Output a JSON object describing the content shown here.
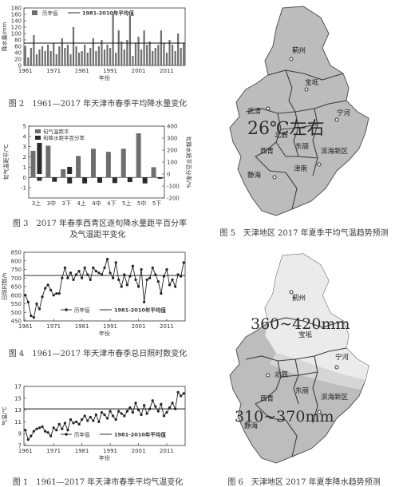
{
  "chart_data": [
    {
      "id": "fig2",
      "type": "bar",
      "caption": "图 2　1961—2017 年天津市春季平均降水量变化",
      "xlabel": "年份",
      "ylabel": "降水量/mm",
      "ylim": [
        0,
        180
      ],
      "yticks": [
        0,
        20,
        40,
        60,
        80,
        100,
        120,
        140,
        160,
        180
      ],
      "xticks": [
        1961,
        1971,
        1981,
        1991,
        2001,
        2011
      ],
      "x": [
        1961,
        1962,
        1963,
        1964,
        1965,
        1966,
        1967,
        1968,
        1969,
        1970,
        1971,
        1972,
        1973,
        1974,
        1975,
        1976,
        1977,
        1978,
        1979,
        1980,
        1981,
        1982,
        1983,
        1984,
        1985,
        1986,
        1987,
        1988,
        1989,
        1990,
        1991,
        1992,
        1993,
        1994,
        1995,
        1996,
        1997,
        1998,
        1999,
        2000,
        2001,
        2002,
        2003,
        2004,
        2005,
        2006,
        2007,
        2008,
        2009,
        2010,
        2011,
        2012,
        2013,
        2014,
        2015,
        2016,
        2017
      ],
      "values": [
        60,
        25,
        55,
        95,
        35,
        50,
        60,
        45,
        65,
        45,
        70,
        35,
        60,
        85,
        55,
        65,
        35,
        120,
        60,
        40,
        45,
        65,
        40,
        55,
        85,
        45,
        60,
        80,
        50,
        65,
        55,
        160,
        40,
        110,
        75,
        50,
        80,
        155,
        30,
        70,
        90,
        50,
        110,
        65,
        75,
        45,
        55,
        65,
        110,
        70,
        40,
        80,
        65,
        45,
        100,
        55,
        70
      ],
      "series": [
        {
          "name": "历年值"
        },
        {
          "name": "1981-2010年平均值",
          "value": 70
        }
      ]
    },
    {
      "id": "fig3",
      "type": "bar",
      "caption": "图 3　2017 年春季西青区逐旬降水量距平百分率",
      "caption2": "及气温距平变化",
      "ylabel_left": "旬气温距平/℃",
      "ylabel_right": "旬降水距平百分率/%",
      "ylim_left": [
        -2,
        5
      ],
      "yticks_left": [
        -1,
        0,
        1,
        2,
        3,
        4,
        5
      ],
      "ylim_right": [
        -200,
        400
      ],
      "yticks_right": [
        -200,
        -100,
        0,
        100,
        200,
        300,
        400
      ],
      "categories": [
        "3上",
        "3中",
        "3下",
        "4上",
        "4中",
        "4下",
        "5上",
        "5中",
        "5下"
      ],
      "series": [
        {
          "name": "旬气温距平",
          "axis": "left",
          "values": [
            2.6,
            3.1,
            0.8,
            2.1,
            2.8,
            2.5,
            2.8,
            4.3,
            1.0
          ]
        },
        {
          "name": "旬降水距平百分率",
          "axis": "right",
          "values": [
            260,
            0,
            60,
            0,
            0,
            0,
            0,
            0,
            0
          ],
          "values_neg": [
            -50,
            -65,
            -90,
            -90,
            -80,
            -85,
            -70,
            -90,
            -20
          ]
        }
      ]
    },
    {
      "id": "fig4",
      "type": "line",
      "caption": "图 4　1961—2017 年天津市春季总日照时数变化",
      "xlabel": "年份",
      "ylabel": "日照时数/h",
      "ylim": [
        450,
        850
      ],
      "yticks": [
        450,
        500,
        550,
        600,
        650,
        700,
        750,
        800,
        850
      ],
      "xticks": [
        1961,
        1971,
        1981,
        1991,
        2001,
        2011
      ],
      "x": [
        1961,
        1962,
        1963,
        1964,
        1965,
        1966,
        1967,
        1968,
        1969,
        1970,
        1971,
        1972,
        1973,
        1974,
        1975,
        1976,
        1977,
        1978,
        1979,
        1980,
        1981,
        1982,
        1983,
        1984,
        1985,
        1986,
        1987,
        1988,
        1989,
        1990,
        1991,
        1992,
        1993,
        1994,
        1995,
        1996,
        1997,
        1998,
        1999,
        2000,
        2001,
        2002,
        2003,
        2004,
        2005,
        2006,
        2007,
        2008,
        2009,
        2010,
        2011,
        2012,
        2013,
        2014,
        2015,
        2016,
        2017
      ],
      "y": [
        600,
        560,
        480,
        470,
        550,
        520,
        590,
        640,
        660,
        630,
        600,
        610,
        610,
        700,
        760,
        700,
        730,
        690,
        720,
        740,
        700,
        760,
        720,
        690,
        760,
        740,
        730,
        720,
        760,
        810,
        730,
        700,
        790,
        690,
        650,
        720,
        660,
        710,
        770,
        690,
        650,
        750,
        560,
        690,
        700,
        760,
        720,
        680,
        610,
        710,
        750,
        660,
        690,
        650,
        720,
        710,
        790
      ],
      "series": [
        {
          "name": "历年值"
        },
        {
          "name": "1981-2010年平均值",
          "value": 715
        }
      ]
    },
    {
      "id": "fig1",
      "type": "line",
      "caption": "图 1　1961—2017 年天津市春季平均气温变化",
      "xlabel": "年份",
      "ylabel": "气温/℃",
      "ylim": [
        7,
        17
      ],
      "yticks": [
        7,
        9,
        11,
        13,
        15,
        17
      ],
      "xticks": [
        1961,
        1971,
        1981,
        1991,
        2001,
        2011
      ],
      "x": [
        1961,
        1962,
        1963,
        1964,
        1965,
        1966,
        1967,
        1968,
        1969,
        1970,
        1971,
        1972,
        1973,
        1974,
        1975,
        1976,
        1977,
        1978,
        1979,
        1980,
        1981,
        1982,
        1983,
        1984,
        1985,
        1986,
        1987,
        1988,
        1989,
        1990,
        1991,
        1992,
        1993,
        1994,
        1995,
        1996,
        1997,
        1998,
        1999,
        2000,
        2001,
        2002,
        2003,
        2004,
        2005,
        2006,
        2007,
        2008,
        2009,
        2010,
        2011,
        2012,
        2013,
        2014,
        2015,
        2016,
        2017
      ],
      "y": [
        9.6,
        8.0,
        8.6,
        9.4,
        9.8,
        10.0,
        10.2,
        9.4,
        9.2,
        8.6,
        10.0,
        9.6,
        10.6,
        9.8,
        10.8,
        9.6,
        11.4,
        10.8,
        11.0,
        10.6,
        11.4,
        12.0,
        11.2,
        11.8,
        11.2,
        12.2,
        11.0,
        12.6,
        12.2,
        11.6,
        12.8,
        12.0,
        11.4,
        12.8,
        12.4,
        12.0,
        12.8,
        13.4,
        12.6,
        14.2,
        13.0,
        12.2,
        13.8,
        12.4,
        13.2,
        14.6,
        13.6,
        12.8,
        14.0,
        12.0,
        12.6,
        13.4,
        14.2,
        13.2,
        16.0,
        15.4,
        15.8
      ],
      "series": [
        {
          "name": "历年值"
        },
        {
          "name": "1981-2010年平均值",
          "value": 13.2
        }
      ]
    }
  ],
  "maps": [
    {
      "id": "fig5",
      "caption": "图 5　天津地区 2017 年夏季平均气温趋势预测",
      "overlay": "26℃左右",
      "labels": [
        "蓟州",
        "宝坻",
        "武清",
        "宁河",
        "北辰",
        "东丽",
        "西青",
        "滨海新区",
        "静海",
        "津南"
      ]
    },
    {
      "id": "fig6",
      "caption": "图 6　天津地区 2017 年夏季降水趋势预测",
      "overlay_top": "360~420mm",
      "overlay_bottom": "310~370mm",
      "labels": [
        "蓟州",
        "宝坻",
        "宁河",
        "北辰",
        "东丽",
        "西青",
        "滨海新区",
        "静海"
      ]
    }
  ],
  "colors": {
    "bar": "#6e6e6e",
    "bar_dark": "#2a2a2a",
    "line": "#222222",
    "map_fill": "#bcbcbc",
    "map_light": "#e9e9e9",
    "map_mid": "#cfcfcf"
  }
}
